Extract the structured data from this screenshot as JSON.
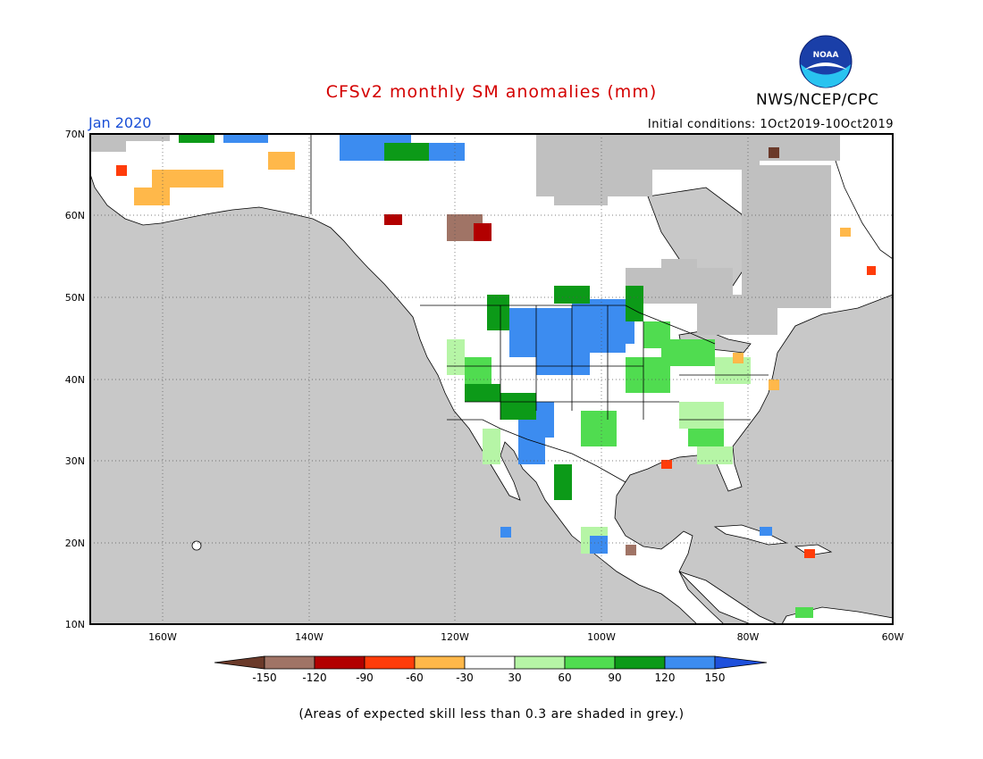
{
  "header": {
    "title": "CFSv2 monthly SM anomalies (mm)",
    "org": "NWS/NCEP/CPC",
    "month": "Jan 2020",
    "initial_conditions": "Initial conditions: 1Oct2019-10Oct2019",
    "logo_text": "NOAA"
  },
  "map": {
    "lat_labels": [
      "70N",
      "60N",
      "50N",
      "40N",
      "30N",
      "20N",
      "10N"
    ],
    "lon_labels": [
      "160W",
      "140W",
      "120W",
      "100W",
      "80W",
      "60W"
    ],
    "colors": {
      "ocean": "#c8c8c8",
      "land_neutral": "#ffffff",
      "skill_grey": "#c0c0c0",
      "coast": "#000000"
    }
  },
  "colorbar": {
    "labels": [
      "-150",
      "-120",
      "-90",
      "-60",
      "-30",
      "30",
      "60",
      "90",
      "120",
      "150"
    ],
    "colors": [
      "#6b3a2a",
      "#a07466",
      "#b20000",
      "#ff3c0a",
      "#ffb84a",
      "#ffffff",
      "#b6f5a6",
      "#50dc50",
      "#0c9a18",
      "#3c8cf0",
      "#1e50dc"
    ]
  },
  "footnote": "(Areas of expected skill less than 0.3 are shaded in grey.)"
}
